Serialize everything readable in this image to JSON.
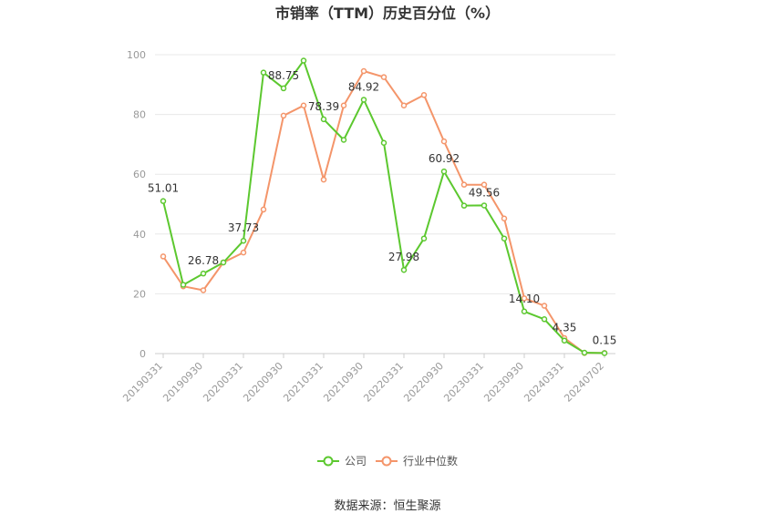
{
  "chart_data": {
    "type": "line",
    "title": "市销率（TTM）历史百分位（%）",
    "source": "数据来源：恒生聚源",
    "ylim": [
      0,
      100
    ],
    "yticks": [
      0,
      20,
      40,
      60,
      80,
      100
    ],
    "x_tick_labels": [
      "20190331",
      "20190930",
      "20200331",
      "20200930",
      "20210331",
      "20210930",
      "20220331",
      "20220930",
      "20230331",
      "20230930",
      "20240331",
      "20240702"
    ],
    "x": [
      "20190331",
      "20190630",
      "20190930",
      "20191231",
      "20200331",
      "20200630",
      "20200930",
      "20201231",
      "20210331",
      "20210630",
      "20210930",
      "20211231",
      "20220331",
      "20220630",
      "20220930",
      "20221231",
      "20230331",
      "20230630",
      "20230930",
      "20231231",
      "20240331",
      "20240630",
      "20240702"
    ],
    "grid": true,
    "legend_position": "bottom",
    "series": [
      {
        "name": "公司",
        "color": "#5cc82f",
        "values": [
          51.01,
          23.0,
          26.78,
          30.5,
          37.73,
          94.0,
          88.75,
          98.0,
          78.39,
          71.5,
          84.92,
          70.5,
          27.98,
          38.5,
          60.92,
          49.5,
          49.56,
          38.5,
          14.1,
          11.5,
          4.35,
          0.3,
          0.15
        ],
        "labels": {
          "0": "51.01",
          "2": "26.78",
          "4": "37.73",
          "6": "88.75",
          "8": "78.39",
          "10": "84.92",
          "12": "27.98",
          "14": "60.92",
          "16": "49.56",
          "18": "14.10",
          "20": "4.35",
          "22": "0.15"
        }
      },
      {
        "name": "行业中位数",
        "color": "#f4956a",
        "values": [
          32.5,
          22.5,
          21.2,
          30.5,
          33.8,
          48.2,
          79.6,
          83.0,
          58.2,
          83.0,
          94.5,
          92.5,
          83.0,
          86.5,
          71.0,
          56.5,
          56.5,
          45.2,
          18.5,
          16.0,
          5.2,
          0.2,
          0.2
        ]
      }
    ]
  }
}
